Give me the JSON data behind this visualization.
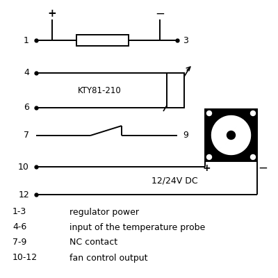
{
  "bg_color": "#ffffff",
  "line_color": "#000000",
  "labels": {
    "plus_top": "+",
    "minus_top": "−",
    "node1": "1",
    "node3": "3",
    "node4": "4",
    "node6": "6",
    "node7": "7",
    "node9": "9",
    "node10": "10",
    "node12": "12",
    "kty": "KTY81-210",
    "voltage": "12/24V DC",
    "plus_fan": "+",
    "minus_fan": "−"
  },
  "legend": [
    [
      "1-3",
      "regulator power"
    ],
    [
      "4-6",
      "input of the temperature probe"
    ],
    [
      "7-9",
      "NC contact"
    ],
    [
      "10-12",
      "fan control output"
    ]
  ],
  "figsize": [
    4.0,
    4.0
  ],
  "dpi": 100
}
